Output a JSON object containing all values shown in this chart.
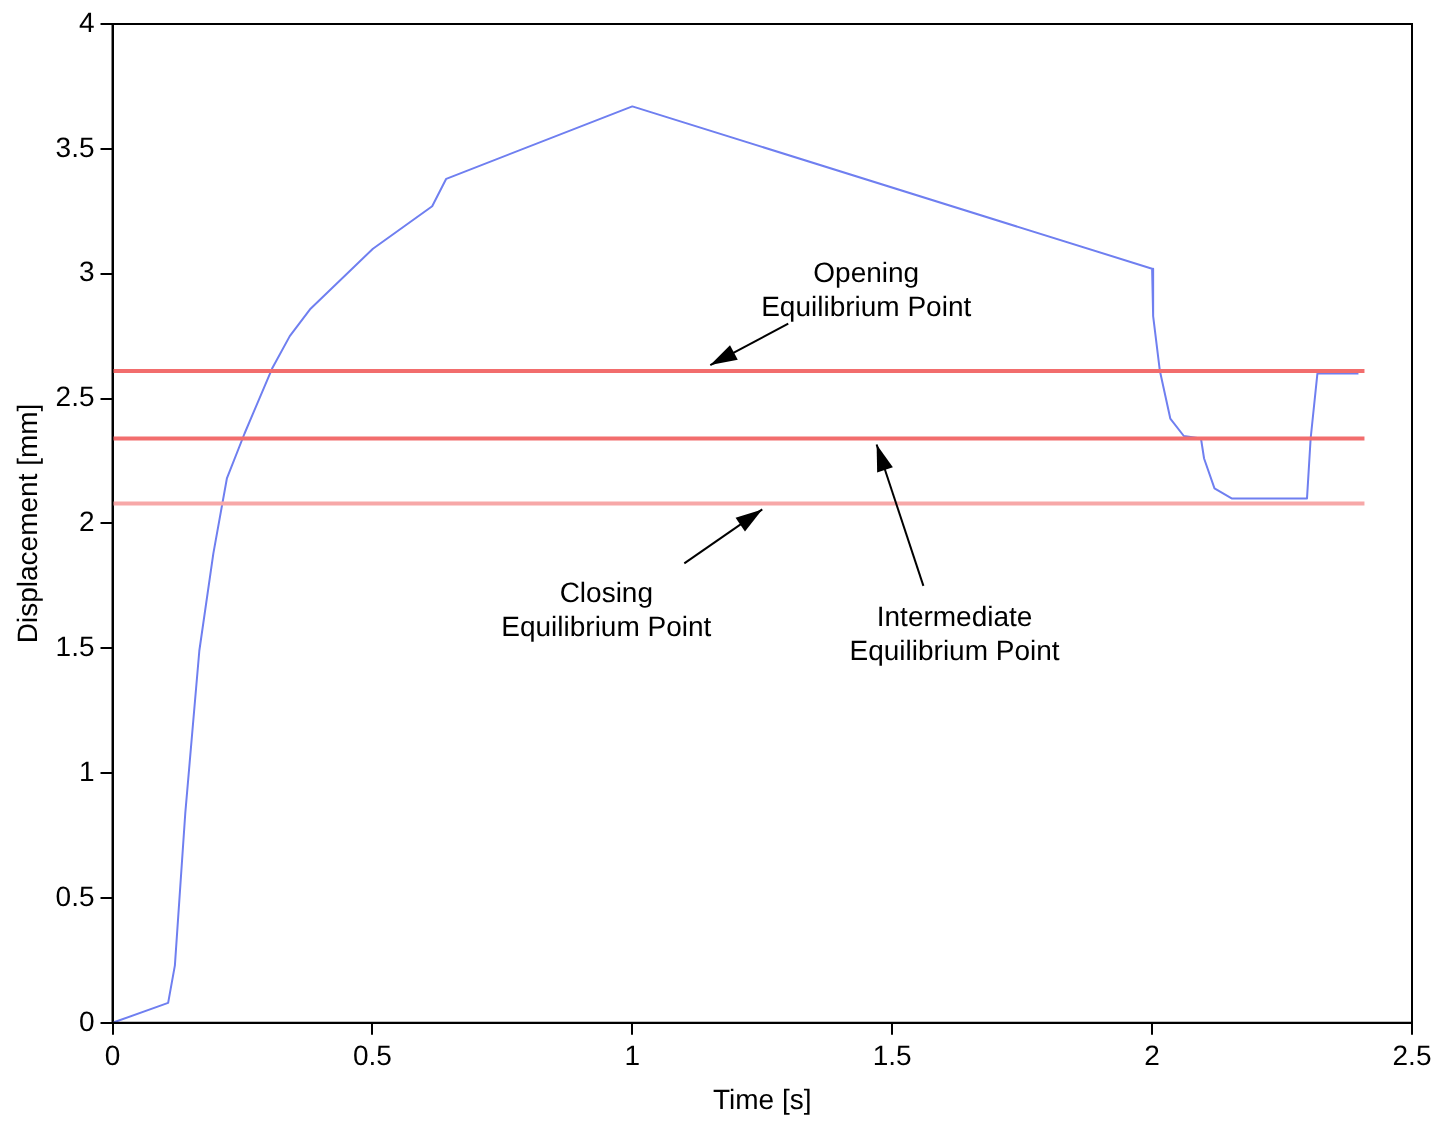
{
  "chart_data": {
    "type": "line",
    "xlabel": "Time [s]",
    "ylabel": "Displacement [mm]",
    "x": [
      0,
      0.107,
      0.12,
      0.14,
      0.167,
      0.194,
      0.22,
      0.254,
      0.307,
      0.341,
      0.381,
      0.501,
      0.615,
      0.642,
      1.0,
      2.0,
      2.002,
      2.015,
      2.035,
      2.061,
      2.094,
      2.1,
      2.12,
      2.153,
      2.298,
      2.305,
      2.318,
      2.397
    ],
    "series": [
      {
        "color": "#6f7ff0",
        "values": [
          0,
          0.08,
          0.23,
          0.84,
          1.49,
          1.88,
          2.18,
          2.36,
          2.62,
          2.75,
          2.86,
          3.1,
          3.27,
          3.38,
          3.67,
          3.02,
          2.83,
          2.61,
          2.42,
          2.35,
          2.34,
          2.26,
          2.14,
          2.1,
          2.1,
          2.34,
          2.6,
          2.6
        ]
      }
    ],
    "xlim": [
      0,
      2.5
    ],
    "xticks": [
      0,
      0.5,
      1,
      1.5,
      2,
      2.5
    ],
    "ylim": [
      0,
      4
    ],
    "yticks": [
      0,
      0.5,
      1,
      1.5,
      2,
      2.5,
      3,
      3.5,
      4
    ],
    "grid": false,
    "legend": false,
    "marker": "none",
    "line_style": "solid",
    "ref_lines": [
      {
        "axis": "y",
        "value": 2.61,
        "label": "Opening\nEquilibrium Point",
        "color": "#f26d6d"
      },
      {
        "axis": "y",
        "value": 2.34,
        "label": "Intermediate\nEquilibrium Point",
        "color": "#f26d6d"
      },
      {
        "axis": "y",
        "value": 2.08,
        "label": "Closing\nEquilibrium Point",
        "color": "#f7a8a8"
      }
    ]
  }
}
